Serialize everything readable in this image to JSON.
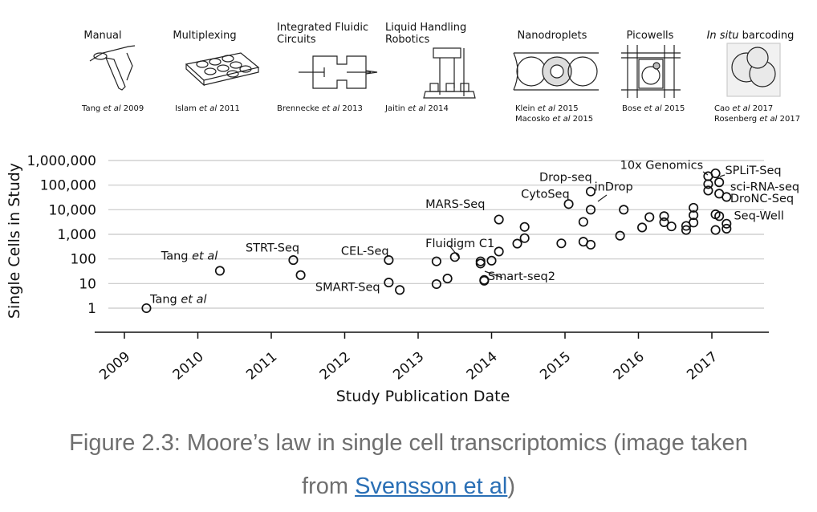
{
  "technologies": [
    {
      "label_lines": [
        "Manual"
      ],
      "citations": [
        [
          "Tang ",
          "et al",
          " 2009"
        ]
      ]
    },
    {
      "label_lines": [
        "Multiplexing"
      ],
      "citations": [
        [
          "Islam ",
          "et al",
          " 2011"
        ]
      ]
    },
    {
      "label_lines": [
        "Integrated Fluidic",
        "Circuits"
      ],
      "citations": [
        [
          "Brennecke ",
          "et al",
          " 2013"
        ]
      ]
    },
    {
      "label_lines": [
        "Liquid Handling",
        "Robotics"
      ],
      "citations": [
        [
          "Jaitin ",
          "et al",
          " 2014"
        ]
      ]
    },
    {
      "label_lines": [
        "Nanodroplets"
      ],
      "citations": [
        [
          "Klein ",
          "et al",
          " 2015"
        ],
        [
          "Macosko ",
          "et al",
          " 2015"
        ]
      ]
    },
    {
      "label_lines": [
        "Picowells"
      ],
      "citations": [
        [
          "Bose ",
          "et al",
          " 2015"
        ]
      ]
    },
    {
      "label_lines": [
        "In situ barcoding"
      ],
      "italic_prefix": "In situ",
      "citations": [
        [
          "Cao ",
          "et al",
          " 2017"
        ],
        [
          "Rosenberg ",
          "et al",
          " 2017"
        ]
      ]
    }
  ],
  "chart_data": {
    "type": "scatter",
    "xlabel": "Study Publication Date",
    "ylabel": "Single Cells in Study",
    "y_scale": "log",
    "ylim": [
      1,
      1000000
    ],
    "xlim": [
      2008.85,
      2017.45
    ],
    "y_tick_labels": [
      "1",
      "10",
      "100",
      "1,000",
      "10,000",
      "100,000",
      "1,000,000"
    ],
    "x_tick_labels": [
      "2009",
      "2010",
      "2011",
      "2012",
      "2013",
      "2014",
      "2015",
      "2016",
      "2017"
    ],
    "grid": true,
    "points": [
      [
        2009.3,
        1
      ],
      [
        2010.3,
        33
      ],
      [
        2011.3,
        90
      ],
      [
        2011.4,
        22
      ],
      [
        2012.6,
        90
      ],
      [
        2012.6,
        11
      ],
      [
        2012.75,
        5.5
      ],
      [
        2013.25,
        80
      ],
      [
        2013.25,
        9.5
      ],
      [
        2013.4,
        16
      ],
      [
        2013.5,
        120
      ],
      [
        2013.85,
        80
      ],
      [
        2013.85,
        65
      ],
      [
        2013.9,
        13
      ],
      [
        2013.9,
        14
      ],
      [
        2014.0,
        85
      ],
      [
        2014.1,
        4000
      ],
      [
        2014.1,
        200
      ],
      [
        2014.35,
        420
      ],
      [
        2014.45,
        2000
      ],
      [
        2014.45,
        700
      ],
      [
        2014.95,
        430
      ],
      [
        2015.05,
        17000
      ],
      [
        2015.25,
        3200
      ],
      [
        2015.25,
        500
      ],
      [
        2015.35,
        55000
      ],
      [
        2015.35,
        10000
      ],
      [
        2015.35,
        380
      ],
      [
        2015.75,
        880
      ],
      [
        2015.8,
        10000
      ],
      [
        2016.05,
        1900
      ],
      [
        2016.15,
        5000
      ],
      [
        2016.35,
        5500
      ],
      [
        2016.35,
        3100
      ],
      [
        2016.45,
        2100
      ],
      [
        2016.65,
        2200
      ],
      [
        2016.65,
        1500
      ],
      [
        2016.75,
        12000
      ],
      [
        2016.75,
        6000
      ],
      [
        2016.75,
        3000
      ],
      [
        2016.95,
        230000
      ],
      [
        2016.95,
        110000
      ],
      [
        2016.95,
        60000
      ],
      [
        2017.05,
        300000
      ],
      [
        2017.05,
        6500
      ],
      [
        2017.05,
        1500
      ],
      [
        2017.1,
        130000
      ],
      [
        2017.1,
        45000
      ],
      [
        2017.1,
        5500
      ],
      [
        2017.2,
        33000
      ],
      [
        2017.2,
        2700
      ],
      [
        2017.2,
        1700
      ]
    ],
    "annotations": [
      {
        "text": "Tang",
        "italic": "et al",
        "x": 2009.35,
        "y": 1.6
      },
      {
        "text": "Tang",
        "italic": "et al",
        "x": 2009.5,
        "y": 95
      },
      {
        "text": "STRT-Seq",
        "x": 2010.65,
        "y": 200
      },
      {
        "text": "CEL-Seq",
        "x": 2011.95,
        "y": 150
      },
      {
        "text": "SMART-Seq",
        "x": 2011.6,
        "y": 5
      },
      {
        "text": "Fluidigm C1",
        "x": 2013.1,
        "y": 300
      },
      {
        "text": "Smart-seq2",
        "x": 2013.95,
        "y": 14
      },
      {
        "text": "MARS-Seq",
        "x": 2013.1,
        "y": 12000
      },
      {
        "text": "CytoSeq",
        "x": 2014.4,
        "y": 30000
      },
      {
        "text": "Drop-seq",
        "x": 2014.65,
        "y": 150000
      },
      {
        "text": "inDrop",
        "x": 2015.4,
        "y": 60000
      },
      {
        "text": "10x Genomics",
        "x": 2015.75,
        "y": 450000
      },
      {
        "text": "SPLiT-Seq",
        "x": 2017.18,
        "y": 280000
      },
      {
        "text": "sci-RNA-seq",
        "x": 2017.25,
        "y": 60000
      },
      {
        "text": "DroNC-Seq",
        "x": 2017.25,
        "y": 20000
      },
      {
        "text": "Seq-Well",
        "x": 2017.3,
        "y": 4000
      }
    ]
  },
  "caption": {
    "prefix": "Figure 2.3: Moore’s law in single cell transcriptomics (image taken",
    "from_text": "from ",
    "link_text": "Svensson et al",
    "suffix": ")"
  }
}
